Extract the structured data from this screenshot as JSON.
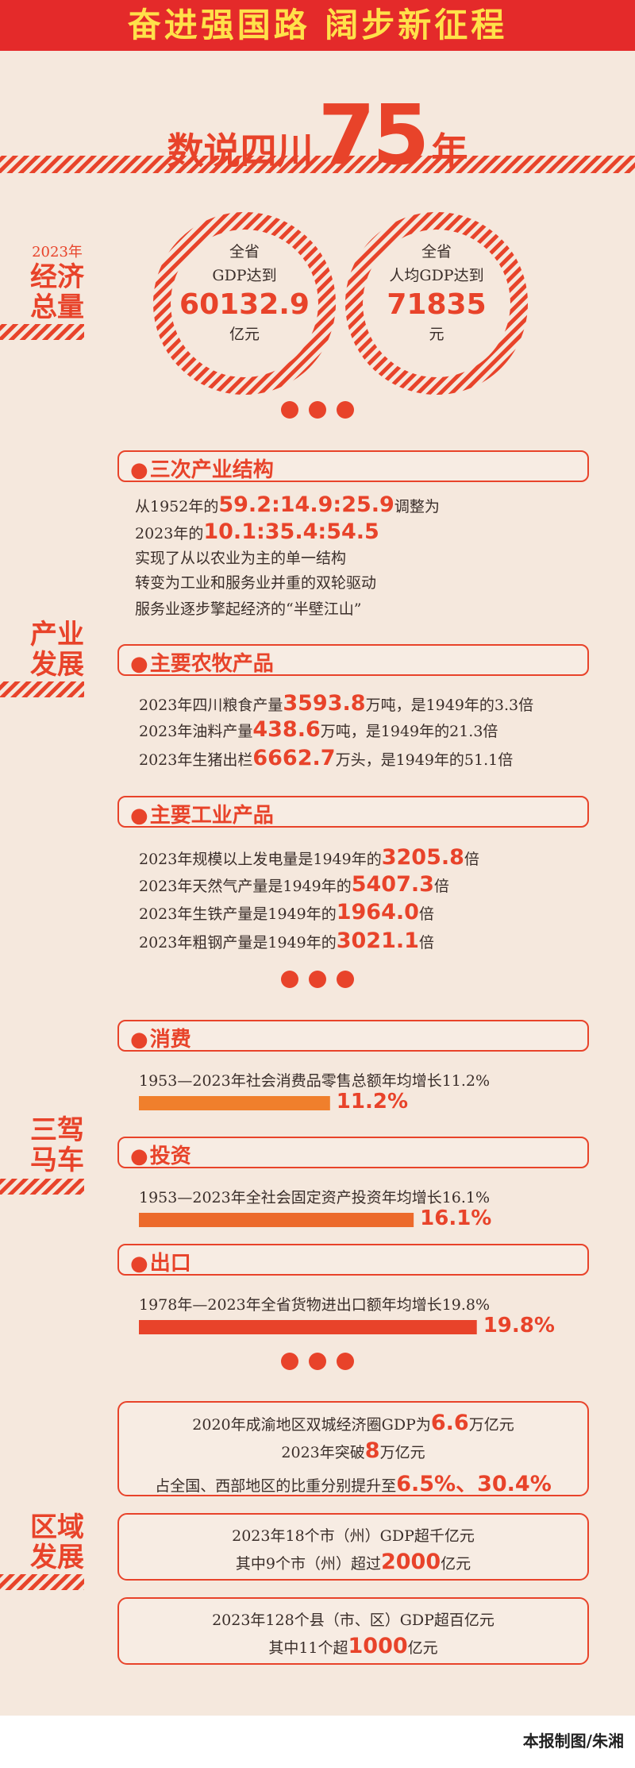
{
  "header": {
    "title": "奋进强国路 阔步新征程"
  },
  "hero": {
    "prefix": "数说四川",
    "number": 75,
    "suffix": "年"
  },
  "economy": {
    "label_year": "2023年",
    "label": [
      "经济",
      "总量"
    ],
    "circles": [
      {
        "line1": "全省",
        "line2": "GDP达到",
        "value": "60132.9",
        "unit": "亿元"
      },
      {
        "line1": "全省",
        "line2": "人均GDP达到",
        "value": "71835",
        "unit": "元"
      }
    ]
  },
  "industry": {
    "label": [
      "产业",
      "发展"
    ],
    "sections": [
      {
        "title": "三次产业结构",
        "lines": [
          [
            "从1952年的",
            "59.2:14.9:25.9",
            "调整为"
          ],
          [
            "2023年的",
            "10.1:35.4:54.5"
          ],
          [
            "实现了从以农业为主的单一结构"
          ],
          [
            "转变为工业和服务业并重的双轮驱动"
          ],
          [
            "服务业逐步擎起经济的“半壁江山”"
          ]
        ]
      },
      {
        "title": "主要农牧产品",
        "lines": [
          [
            "2023年四川粮食产量",
            "3593.8",
            "万吨，是1949年的3.3倍"
          ],
          [
            "2023年油料产量",
            "438.6",
            "万吨，是1949年的21.3倍"
          ],
          [
            "2023年生猪出栏",
            "6662.7",
            "万头，是1949年的51.1倍"
          ]
        ]
      },
      {
        "title": "主要工业产品",
        "lines": [
          [
            "2023年规模以上发电量是1949年的",
            "3205.8",
            "倍"
          ],
          [
            "2023年天然气产量是1949年的",
            "5407.3",
            "倍"
          ],
          [
            "2023年生铁产量是1949年的",
            "1964.0",
            "倍"
          ],
          [
            "2023年粗钢产量是1949年的",
            "3021.1",
            "倍"
          ]
        ]
      }
    ]
  },
  "drivers": {
    "label": [
      "三驾",
      "马车"
    ],
    "sections": [
      {
        "title": "消费",
        "text": "1953—2023年社会消费品零售总额年均增长11.2%",
        "bar": {
          "value": 11.2,
          "label": "11.2%",
          "color": "#f07f2c"
        }
      },
      {
        "title": "投资",
        "text": "1953—2023年全社会固定资产投资年均增长16.1%",
        "bar": {
          "value": 16.1,
          "label": "16.1%",
          "color": "#ec6a2b"
        }
      },
      {
        "title": "出口",
        "text": "1978年—2023年全省货物进出口额年均增长19.8%",
        "bar": {
          "value": 19.8,
          "label": "19.8%",
          "color": "#e8432a"
        }
      }
    ]
  },
  "region": {
    "label": [
      "区域",
      "发展"
    ],
    "boxes": [
      {
        "lines": [
          [
            "2020年成渝地区双城经济圈GDP为",
            "6.6",
            "万亿元"
          ],
          [
            "2023年突破",
            "8",
            "万亿元"
          ],
          [
            "占全国、西部地区的比重分别提升至",
            "6.5%、30.4%"
          ]
        ]
      },
      {
        "lines": [
          [
            "2023年18个市（州）GDP超千亿元"
          ],
          [
            "其中9个市（州）超过",
            "2000",
            "亿元"
          ]
        ]
      },
      {
        "lines": [
          [
            "2023年128个县（市、区）GDP超百亿元"
          ],
          [
            "其中11个超",
            "1000",
            "亿元"
          ]
        ]
      }
    ]
  },
  "footer": {
    "credit": "本报制图/朱湘"
  }
}
